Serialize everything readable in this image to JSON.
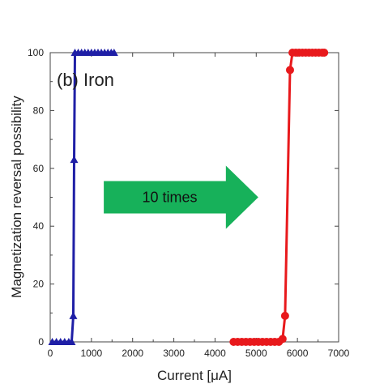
{
  "chart_data": {
    "type": "line",
    "panel_label": "(b) Iron",
    "xlabel": "Current [μA]",
    "ylabel": "Magnetization reversal possibility",
    "xlim": [
      0,
      7000
    ],
    "ylim": [
      0,
      100
    ],
    "xticks": [
      0,
      1000,
      2000,
      3000,
      4000,
      5000,
      6000,
      7000
    ],
    "yticks": [
      0,
      20,
      40,
      60,
      80,
      100
    ],
    "grid": false,
    "annotation": {
      "text": "10 times",
      "color": "#17b15a",
      "from_x": 1300,
      "to_x": 5050,
      "y": 50
    },
    "series": [
      {
        "marker": "triangle",
        "color": "#1f1fa6",
        "points": [
          [
            50,
            0
          ],
          [
            150,
            0
          ],
          [
            250,
            0
          ],
          [
            350,
            0
          ],
          [
            450,
            0
          ],
          [
            520,
            0
          ],
          [
            560,
            9
          ],
          [
            580,
            63
          ],
          [
            600,
            100
          ],
          [
            680,
            100
          ],
          [
            760,
            100
          ],
          [
            840,
            100
          ],
          [
            920,
            100
          ],
          [
            1000,
            100
          ],
          [
            1080,
            100
          ],
          [
            1160,
            100
          ],
          [
            1240,
            100
          ],
          [
            1320,
            100
          ],
          [
            1400,
            100
          ],
          [
            1480,
            100
          ],
          [
            1550,
            100
          ]
        ]
      },
      {
        "marker": "circle",
        "color": "#e8191c",
        "points": [
          [
            4450,
            0
          ],
          [
            4550,
            0
          ],
          [
            4650,
            0
          ],
          [
            4750,
            0
          ],
          [
            4850,
            0
          ],
          [
            4950,
            0
          ],
          [
            5050,
            0
          ],
          [
            5150,
            0
          ],
          [
            5250,
            0
          ],
          [
            5350,
            0
          ],
          [
            5450,
            0
          ],
          [
            5550,
            0
          ],
          [
            5640,
            1
          ],
          [
            5700,
            9
          ],
          [
            5820,
            94
          ],
          [
            5880,
            100
          ],
          [
            5960,
            100
          ],
          [
            6040,
            100
          ],
          [
            6120,
            100
          ],
          [
            6200,
            100
          ],
          [
            6280,
            100
          ],
          [
            6360,
            100
          ],
          [
            6440,
            100
          ],
          [
            6520,
            100
          ],
          [
            6600,
            100
          ],
          [
            6650,
            100
          ]
        ]
      }
    ]
  }
}
